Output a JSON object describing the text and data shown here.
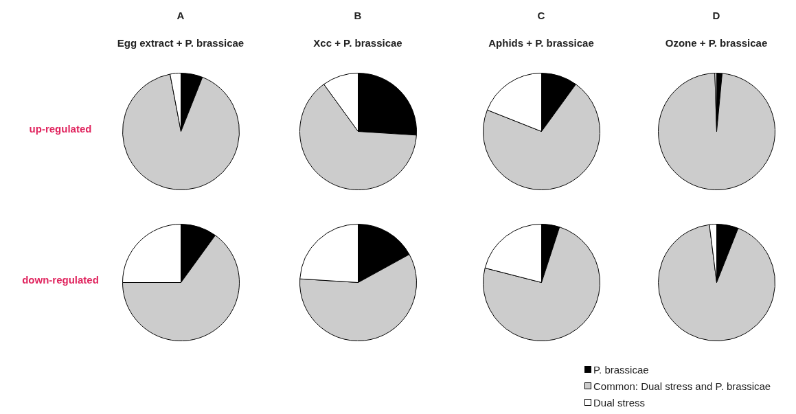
{
  "chart_data": [
    {
      "type": "pie",
      "title": "A",
      "subtitle": "Egg extract + P. brassicae",
      "ylabel": "up-regulated",
      "categories": [
        null,
        null,
        null
      ],
      "values": [
        6,
        91,
        3
      ],
      "colors": [
        "#000000",
        "#cccccc",
        "#ffffff"
      ]
    },
    {
      "type": "pie",
      "title": "B",
      "subtitle": "Xcc + P. brassicae",
      "categories": [
        null,
        null,
        null
      ],
      "values": [
        26,
        64,
        10
      ],
      "colors": [
        "#000000",
        "#cccccc",
        "#ffffff"
      ]
    },
    {
      "type": "pie",
      "title": "C",
      "subtitle": "Aphids + P. brassicae",
      "categories": [
        null,
        null,
        null
      ],
      "values": [
        10,
        71,
        19
      ],
      "colors": [
        "#000000",
        "#cccccc",
        "#ffffff"
      ]
    },
    {
      "type": "pie",
      "title": "D",
      "subtitle": "Ozone + P. brassicae",
      "categories": [
        null,
        null,
        null
      ],
      "values": [
        1.5,
        98,
        0.5
      ],
      "colors": [
        "#000000",
        "#cccccc",
        "#ffffff"
      ]
    },
    {
      "type": "pie",
      "ylabel": "down-regulated",
      "categories": [
        null,
        null,
        null
      ],
      "values": [
        10,
        65,
        25
      ],
      "colors": [
        "#000000",
        "#cccccc",
        "#ffffff"
      ]
    },
    {
      "type": "pie",
      "categories": [
        null,
        null,
        null
      ],
      "values": [
        17,
        59,
        24
      ],
      "colors": [
        "#000000",
        "#cccccc",
        "#ffffff"
      ]
    },
    {
      "type": "pie",
      "categories": [
        null,
        null,
        null
      ],
      "values": [
        5,
        74,
        21
      ],
      "colors": [
        "#000000",
        "#cccccc",
        "#ffffff"
      ]
    },
    {
      "type": "pie",
      "legend": "bottom",
      "categories": [
        "P. brassicae",
        "Common: Dual stress and P. brassicae",
        "Dual stress"
      ],
      "values": [
        6,
        92,
        2
      ],
      "colors": [
        "#000000",
        "#cccccc",
        "#ffffff"
      ]
    }
  ]
}
